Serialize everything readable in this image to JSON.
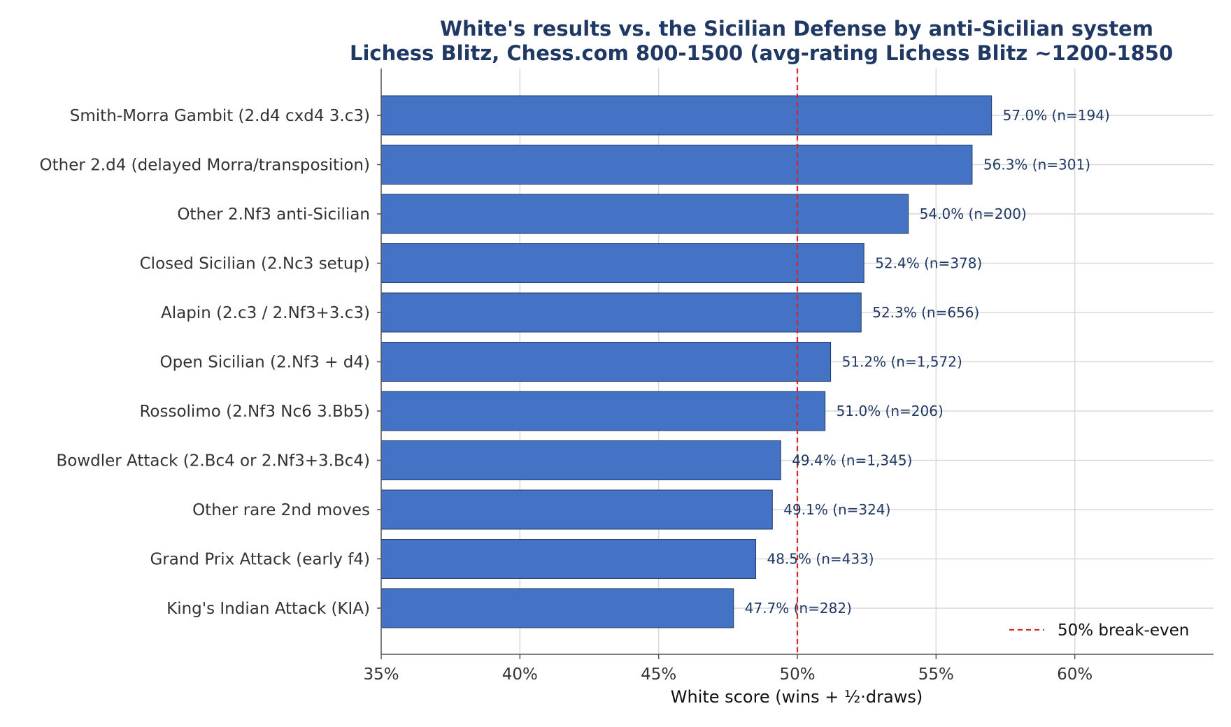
{
  "chart_data": {
    "type": "bar",
    "orientation": "horizontal",
    "title": "White's results vs. the Sicilian Defense by anti-Sicilian system",
    "subtitle": "Lichess Blitz, Chess.com 800-1500 (avg-rating Lichess Blitz ~1200-1850",
    "xlabel": "White score (wins + ½·draws)",
    "ylabel": "",
    "xlim": [
      35,
      65
    ],
    "xticks": [
      35,
      40,
      45,
      50,
      55,
      60
    ],
    "xtick_labels": [
      "35%",
      "40%",
      "45%",
      "50%",
      "55%",
      "60%"
    ],
    "grid": "vertical and horizontal",
    "categories": [
      "Smith-Morra Gambit (2.d4 cxd4 3.c3)",
      "Other 2.d4 (delayed Morra/transposition)",
      "Other 2.Nf3 anti-Sicilian",
      "Closed Sicilian (2.Nc3 setup)",
      "Alapin (2.c3 / 2.Nf3+3.c3)",
      "Open Sicilian (2.Nf3 + d4)",
      "Rossolimo (2.Nf3 Nc6 3.Bb5)",
      "Bowdler Attack (2.Bc4 or 2.Nf3+3.Bc4)",
      "Other rare 2nd moves",
      "Grand Prix Attack (early f4)",
      "King's Indian Attack (KIA)"
    ],
    "values": [
      57.0,
      56.3,
      54.0,
      52.4,
      52.3,
      51.2,
      51.0,
      49.4,
      49.1,
      48.5,
      47.7
    ],
    "value_labels": [
      "57.0%  (n=194)",
      "56.3%  (n=301)",
      "54.0%  (n=200)",
      "52.4%  (n=378)",
      "52.3%  (n=656)",
      "51.2%  (n=1,572)",
      "51.0%  (n=206)",
      "49.4%  (n=1,345)",
      "49.1%  (n=324)",
      "48.5%  (n=433)",
      "47.7%  (n=282)"
    ],
    "reference_line": {
      "x": 50,
      "label": "50% break-even",
      "style": "dashed",
      "color": "#d62728"
    },
    "legend_position": "bottom-right",
    "bar_color": "#4472c4",
    "bar_edge_color": "#1f3864"
  }
}
